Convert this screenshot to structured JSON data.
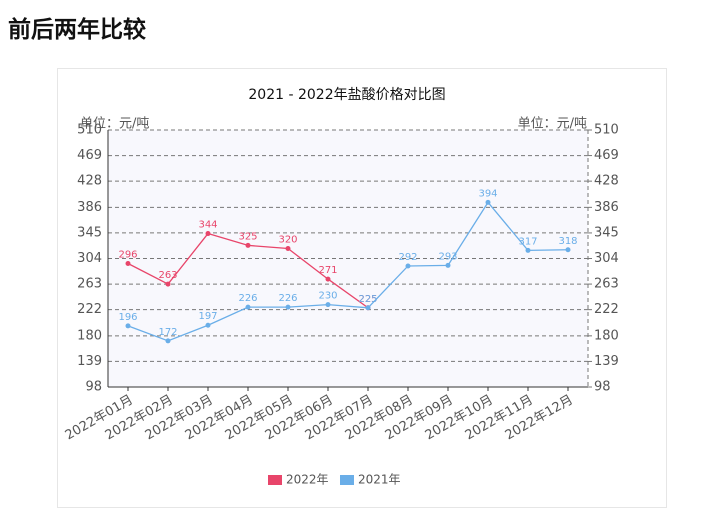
{
  "header": {
    "title": "前后两年比较"
  },
  "chart_data": {
    "type": "line",
    "title": "2021 - 2022年盐酸价格对比图",
    "y_unit_label": "单位：元/吨",
    "categories": [
      "2022年01月",
      "2022年02月",
      "2022年03月",
      "2022年04月",
      "2022年05月",
      "2022年06月",
      "2022年07月",
      "2022年08月",
      "2022年09月",
      "2022年10月",
      "2022年11月",
      "2022年12月"
    ],
    "series": [
      {
        "name": "2022年",
        "color": "#e8456a",
        "values": [
          296,
          263,
          344,
          325,
          320,
          271,
          225,
          null,
          null,
          null,
          null,
          null
        ]
      },
      {
        "name": "2021年",
        "color": "#6aaee8",
        "values": [
          196,
          172,
          197,
          226,
          226,
          230,
          225,
          292,
          293,
          394,
          317,
          318
        ]
      }
    ],
    "ylim": [
      98,
      510
    ],
    "yticks": [
      510,
      469,
      428,
      386,
      345,
      304,
      263,
      222,
      180,
      139,
      98
    ],
    "y2lim": [
      98,
      510
    ],
    "y2ticks": [
      510,
      469,
      428,
      386,
      345,
      304,
      263,
      222,
      180,
      139,
      98
    ],
    "grid": true,
    "legend": "bottom"
  }
}
